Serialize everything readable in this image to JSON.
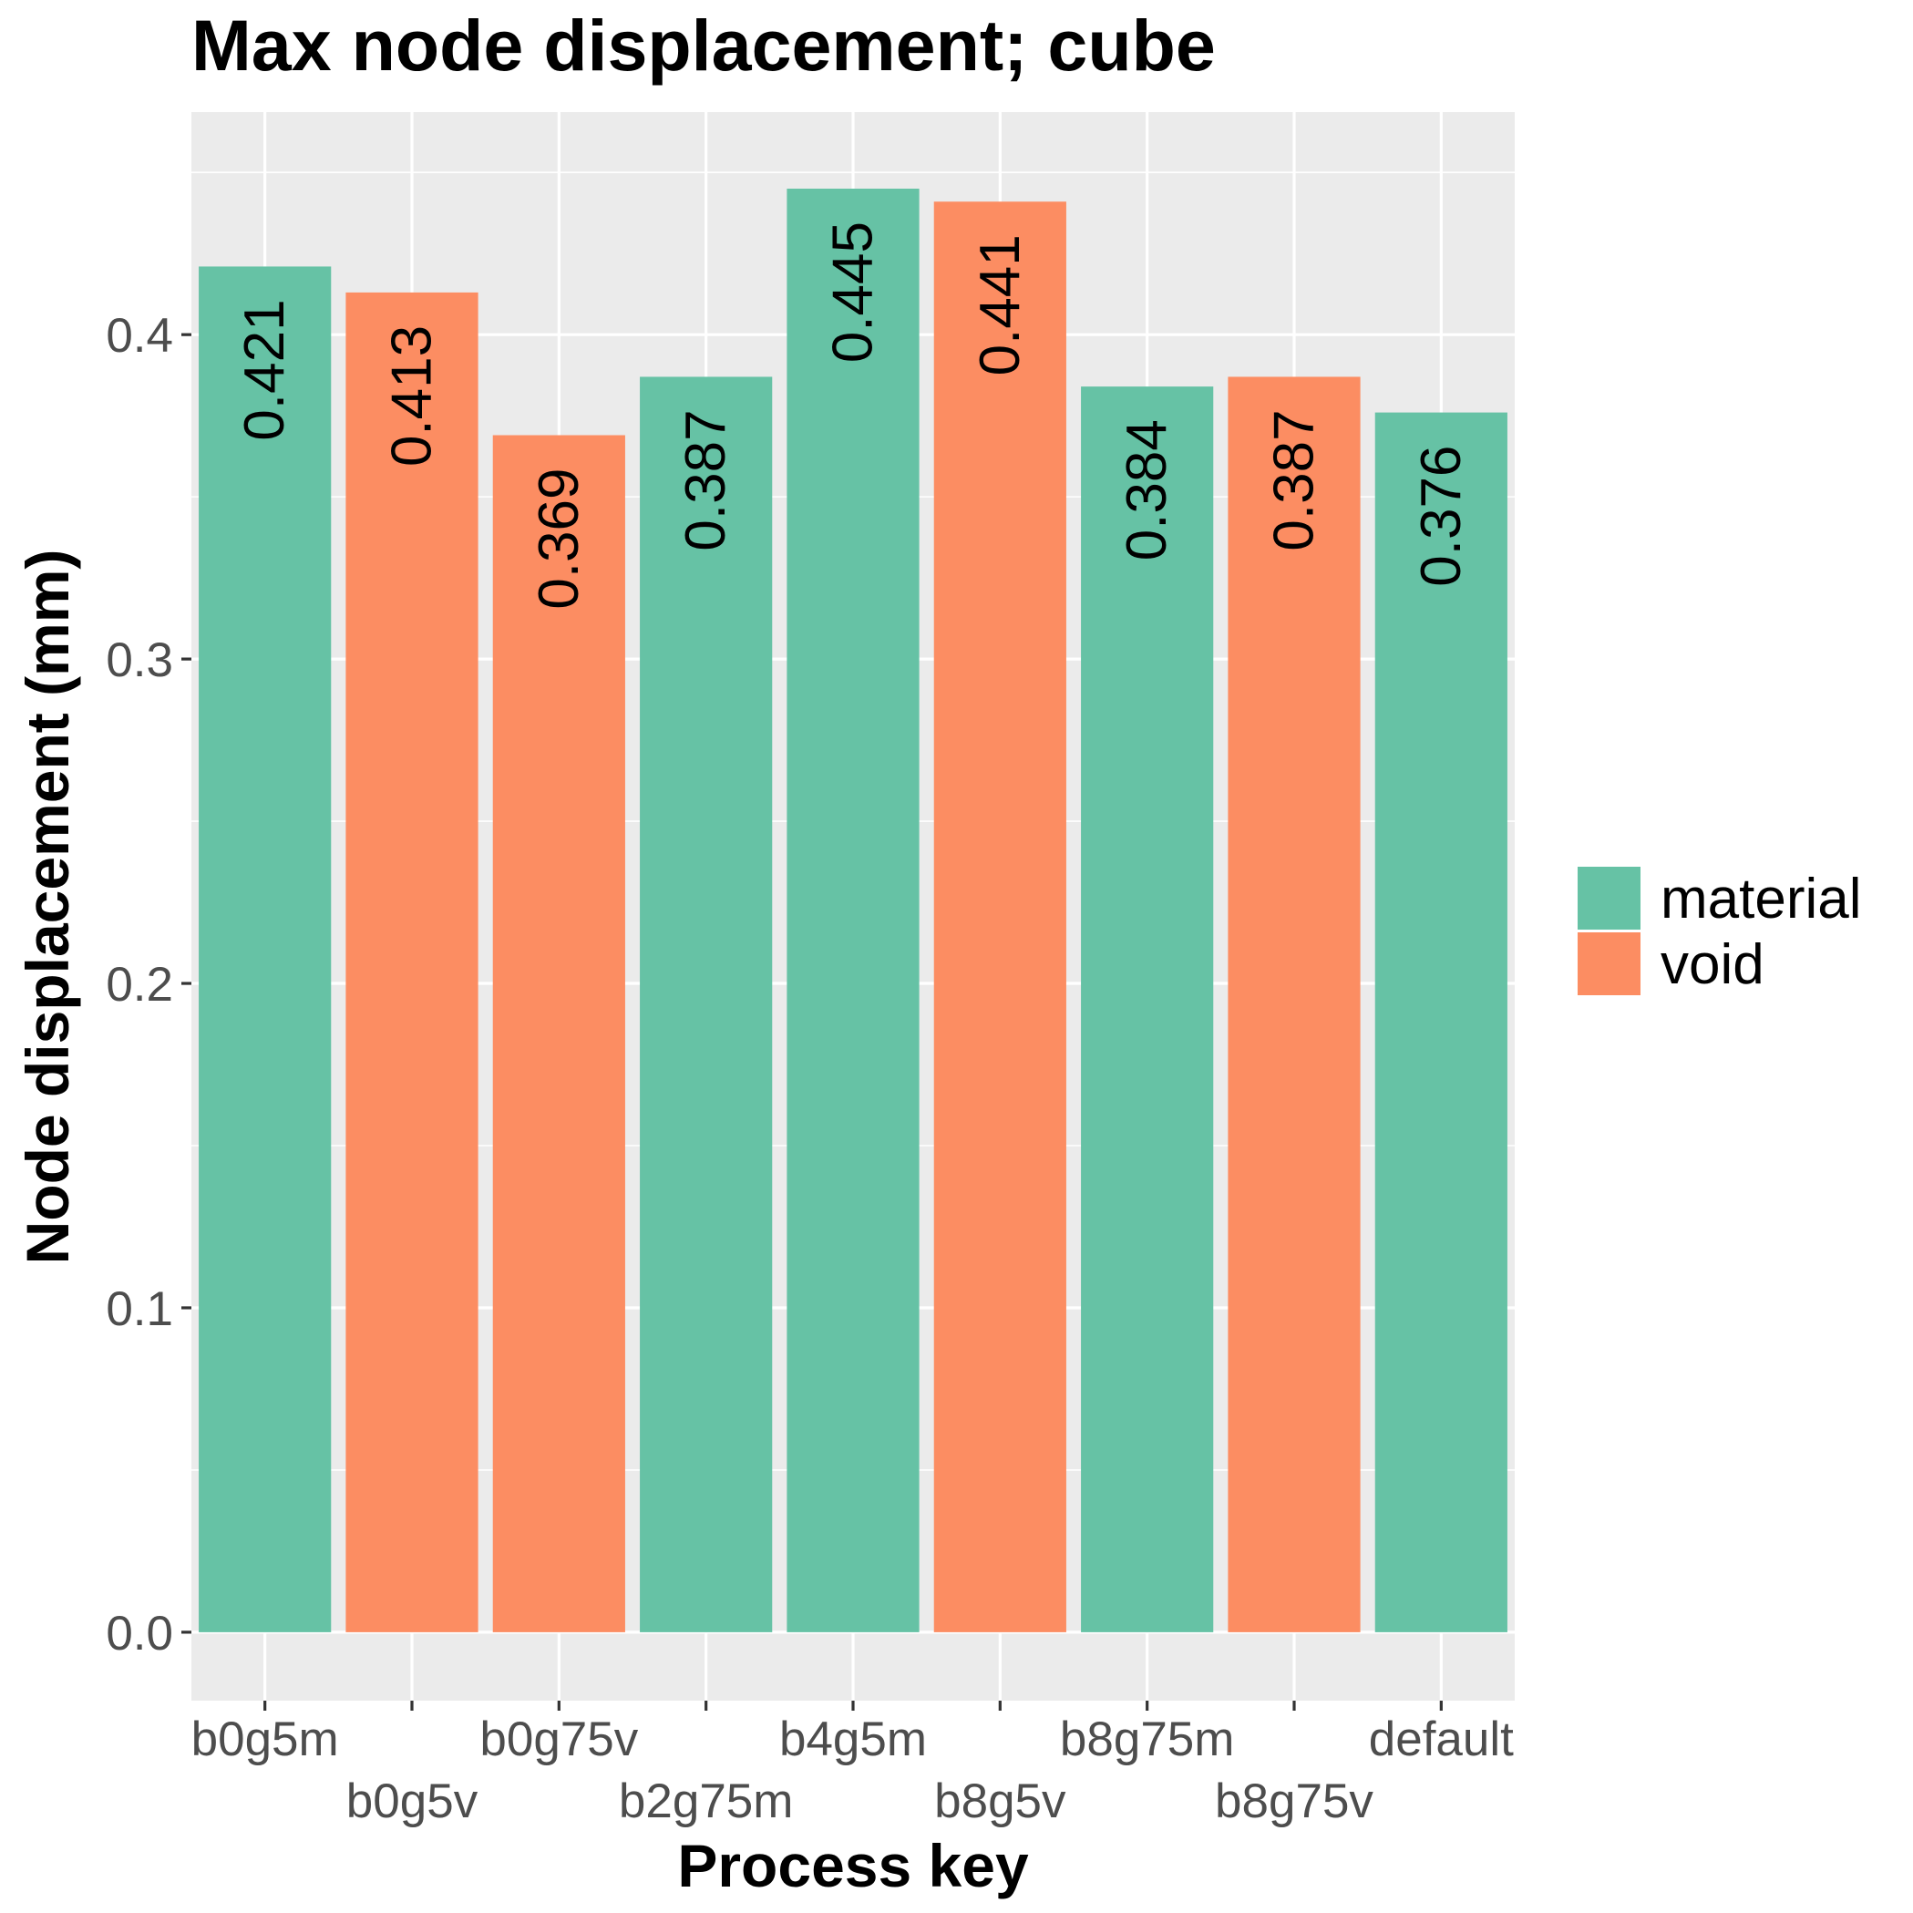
{
  "chart_data": {
    "type": "bar",
    "title": "Max node displacement; cube",
    "xlabel": "Process key",
    "ylabel": "Node displacement (mm)",
    "categories": [
      "b0g5m",
      "b0g5v",
      "b0g75v",
      "b2g75m",
      "b4g5m",
      "b8g5v",
      "b8g75m",
      "b8g75v",
      "default"
    ],
    "values": [
      0.421,
      0.413,
      0.369,
      0.387,
      0.445,
      0.441,
      0.384,
      0.387,
      0.376
    ],
    "value_labels": [
      "0.421",
      "0.413",
      "0.369",
      "0.387",
      "0.445",
      "0.441",
      "0.384",
      "0.387",
      "0.376"
    ],
    "fill": [
      "material",
      "void",
      "void",
      "material",
      "material",
      "void",
      "material",
      "void",
      "material"
    ],
    "legend": {
      "position": "right",
      "entries": [
        {
          "label": "material",
          "color": "#66c2a5"
        },
        {
          "label": "void",
          "color": "#fc8d62"
        }
      ]
    },
    "yticks": [
      "0.0",
      "0.1",
      "0.2",
      "0.3",
      "0.4"
    ],
    "ytick_values": [
      0.0,
      0.1,
      0.2,
      0.3,
      0.4
    ],
    "ylim": [
      -0.0211,
      0.4686
    ],
    "grid": true,
    "panel_background": "#ebebeb"
  }
}
